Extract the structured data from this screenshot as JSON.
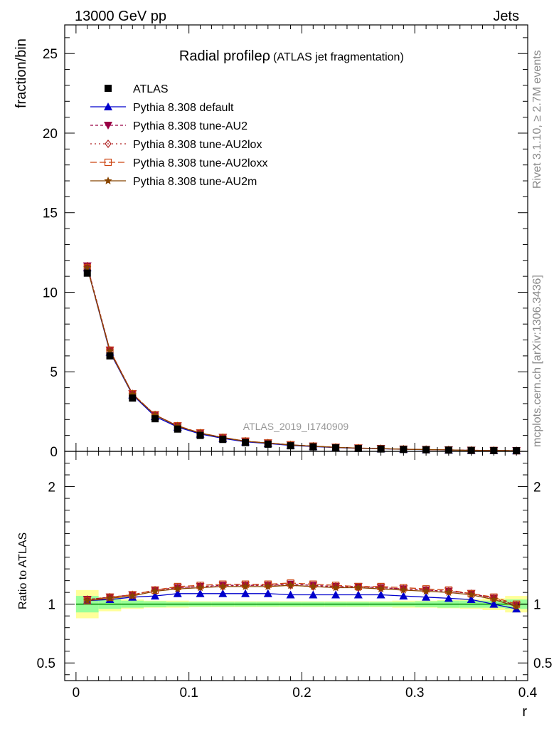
{
  "header": {
    "left": "13000 GeV pp",
    "right": "Jets"
  },
  "side_labels": {
    "top": "Rivet 3.1.10, ≥ 2.7M events",
    "bottom": "mcplots.cern.ch [arXiv:1306.3436]"
  },
  "chart_data": {
    "type": "line",
    "title": "Radial profileρ",
    "subtitle": "(ATLAS jet fragmentation)",
    "watermark": "ATLAS_2019_I1740909",
    "xlabel": "r",
    "ylabel": "fraction/bin",
    "ratio_ylabel": "Ratio to ATLAS",
    "xlim": [
      -0.01,
      0.4
    ],
    "ylim": [
      0,
      26.8
    ],
    "ratio_ylim": [
      0.35,
      2.3
    ],
    "x_ticks": [
      0,
      0.1,
      0.2,
      0.3,
      0.4
    ],
    "x_tick_labels": [
      "0",
      "0.1",
      "0.2",
      "0.3",
      "0.4"
    ],
    "y_ticks": [
      0,
      5,
      10,
      15,
      20,
      25
    ],
    "y_tick_labels": [
      "0",
      "5",
      "10",
      "15",
      "20",
      "25"
    ],
    "ratio_ticks": [
      0.5,
      1,
      2
    ],
    "ratio_tick_labels": [
      "0.5",
      "1",
      "2"
    ],
    "x": [
      0.01,
      0.03,
      0.05,
      0.07,
      0.09,
      0.11,
      0.13,
      0.15,
      0.17,
      0.19,
      0.21,
      0.23,
      0.25,
      0.27,
      0.29,
      0.31,
      0.33,
      0.35,
      0.37,
      0.39
    ],
    "data": {
      "name": "ATLAS",
      "values": [
        11.2,
        6.0,
        3.35,
        2.05,
        1.4,
        1.0,
        0.75,
        0.55,
        0.45,
        0.35,
        0.28,
        0.22,
        0.18,
        0.15,
        0.12,
        0.1,
        0.08,
        0.06,
        0.05,
        0.04
      ],
      "band_inner": [
        0.07,
        0.04,
        0.03,
        0.025,
        0.02,
        0.02,
        0.02,
        0.02,
        0.02,
        0.02,
        0.02,
        0.02,
        0.02,
        0.02,
        0.02,
        0.025,
        0.03,
        0.03,
        0.03,
        0.04
      ],
      "band_outer": [
        0.12,
        0.06,
        0.04,
        0.03,
        0.03,
        0.025,
        0.025,
        0.025,
        0.025,
        0.025,
        0.025,
        0.025,
        0.025,
        0.025,
        0.03,
        0.03,
        0.035,
        0.04,
        0.05,
        0.07
      ]
    },
    "series": [
      {
        "name": "Pythia 8.308 default",
        "color": "#0000cc",
        "dash": "",
        "marker": "triangle-up",
        "ratio": [
          1.03,
          1.04,
          1.06,
          1.07,
          1.09,
          1.09,
          1.09,
          1.09,
          1.09,
          1.08,
          1.08,
          1.08,
          1.08,
          1.08,
          1.07,
          1.06,
          1.05,
          1.04,
          1.0,
          0.96
        ]
      },
      {
        "name": "Pythia 8.308 tune-AU2",
        "color": "#990044",
        "dash": "4,3",
        "marker": "triangle-down",
        "ratio": [
          1.04,
          1.06,
          1.08,
          1.12,
          1.14,
          1.15,
          1.16,
          1.16,
          1.16,
          1.17,
          1.16,
          1.15,
          1.15,
          1.14,
          1.13,
          1.12,
          1.11,
          1.09,
          1.05,
          0.99
        ]
      },
      {
        "name": "Pythia 8.308 tune-AU2lox",
        "color": "#b02222",
        "dash": "2,4",
        "marker": "diamond",
        "ratio": [
          1.04,
          1.06,
          1.08,
          1.12,
          1.14,
          1.15,
          1.15,
          1.16,
          1.16,
          1.16,
          1.15,
          1.15,
          1.14,
          1.14,
          1.13,
          1.12,
          1.11,
          1.09,
          1.05,
          0.99
        ]
      },
      {
        "name": "Pythia 8.308 tune-AU2loxx",
        "color": "#cc4411",
        "dash": "9,4",
        "marker": "square-open",
        "ratio": [
          1.03,
          1.06,
          1.08,
          1.12,
          1.15,
          1.16,
          1.17,
          1.17,
          1.17,
          1.18,
          1.17,
          1.16,
          1.15,
          1.15,
          1.14,
          1.13,
          1.12,
          1.09,
          1.06,
          1.0
        ]
      },
      {
        "name": "Pythia 8.308 tune-AU2m",
        "color": "#884400",
        "dash": "",
        "marker": "star",
        "ratio": [
          1.03,
          1.05,
          1.07,
          1.11,
          1.13,
          1.14,
          1.15,
          1.15,
          1.15,
          1.16,
          1.15,
          1.14,
          1.14,
          1.13,
          1.12,
          1.11,
          1.1,
          1.08,
          1.04,
          0.98
        ]
      }
    ]
  }
}
